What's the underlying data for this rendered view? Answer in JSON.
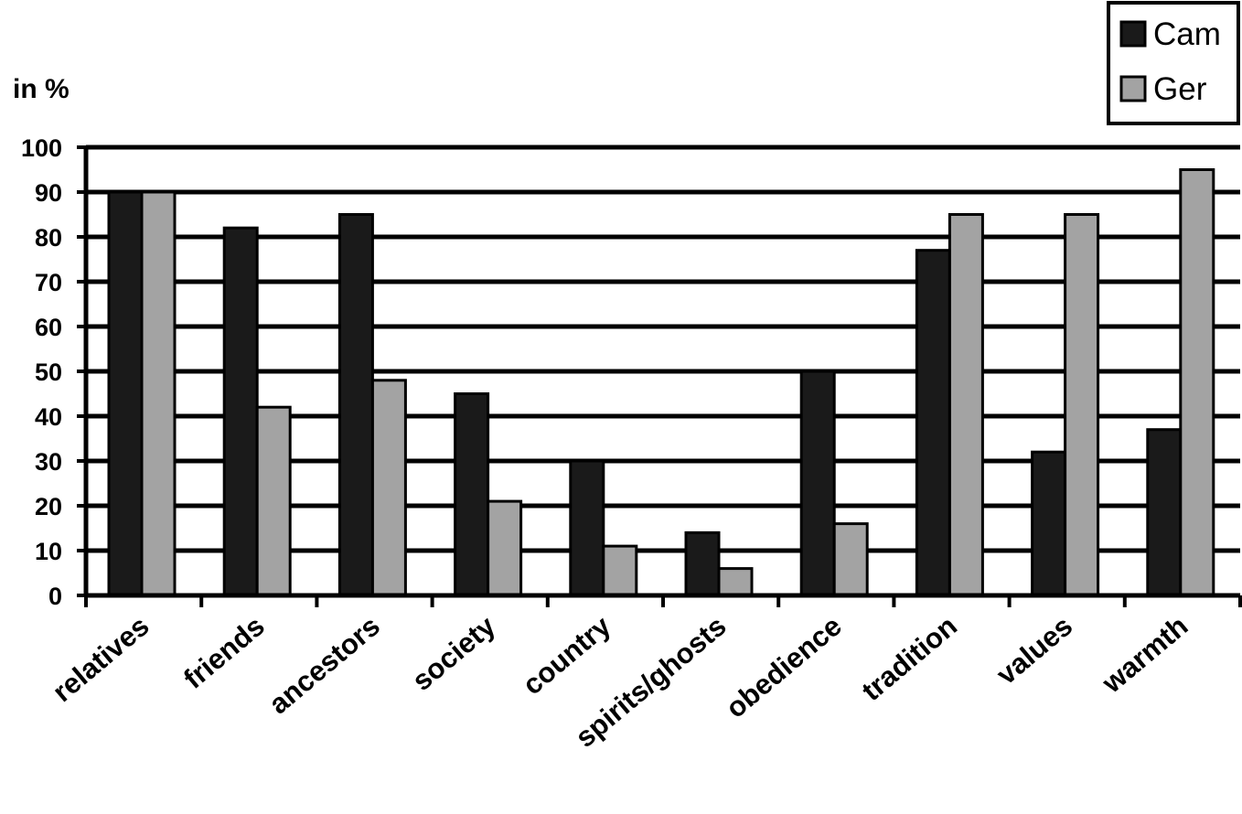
{
  "chart_data": {
    "type": "bar",
    "title": "",
    "xlabel": "",
    "ylabel": "in %",
    "ylim": [
      0,
      100
    ],
    "yticks": [
      0,
      10,
      20,
      30,
      40,
      50,
      60,
      70,
      80,
      90,
      100
    ],
    "grid": true,
    "legend_position": "top-right",
    "categories": [
      "relatives",
      "friends",
      "ancestors",
      "society",
      "country",
      "spirits/ghosts",
      "obedience",
      "tradition",
      "values",
      "warmth"
    ],
    "series": [
      {
        "name": "Cam",
        "color": "#1a1a1a",
        "values": [
          90,
          82,
          85,
          45,
          30,
          14,
          50,
          77,
          32,
          37
        ]
      },
      {
        "name": "Ger",
        "color": "#a3a3a3",
        "values": [
          90,
          42,
          48,
          21,
          11,
          6,
          16,
          85,
          85,
          95
        ]
      }
    ]
  }
}
